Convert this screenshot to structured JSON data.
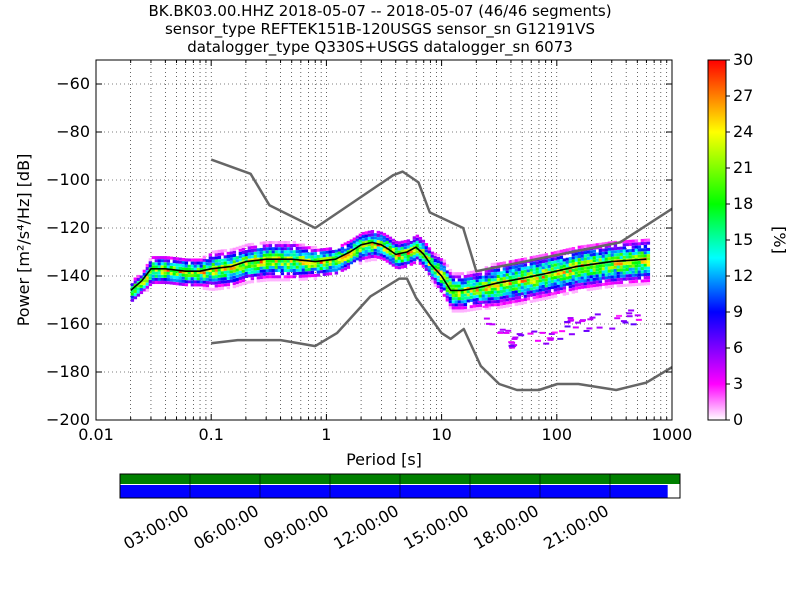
{
  "title_lines": [
    "BK.BK03.00.HHZ   2018-05-07 -- 2018-05-07  (46/46 segments)",
    "sensor_type REFTEK151B-120USGS sensor_sn G12191VS",
    "datalogger_type Q330S+USGS datalogger_sn 6073"
  ],
  "chart_data": {
    "type": "heatmap",
    "title": "BK.BK03.00.HHZ   2018-05-07 -- 2018-05-07  (46/46 segments)",
    "xlabel": "Period [s]",
    "ylabel": "Power [m²/s⁴/Hz] [dB]",
    "xscale": "log",
    "xlim": [
      0.01,
      1000
    ],
    "ylim": [
      -200,
      -50
    ],
    "xticks": [
      {
        "value": 0.01,
        "label": "0.01"
      },
      {
        "value": 0.1,
        "label": "0.1"
      },
      {
        "value": 1,
        "label": "1"
      },
      {
        "value": 10,
        "label": "10"
      },
      {
        "value": 100,
        "label": "100"
      },
      {
        "value": 1000,
        "label": "1000"
      }
    ],
    "yticks": [
      -60,
      -80,
      -100,
      -120,
      -140,
      -160,
      -180,
      -200
    ],
    "grid": true,
    "colorbar": {
      "label": "[%]",
      "min": 0,
      "max": 30,
      "ticks": [
        0,
        3,
        6,
        9,
        12,
        15,
        18,
        21,
        24,
        27,
        30
      ],
      "colors": [
        "#ffffff",
        "#ff00ff",
        "#0000ff",
        "#00ffff",
        "#00ff00",
        "#ffff00",
        "#ff0000"
      ]
    },
    "series": [
      {
        "role": "new_high_noise_model",
        "color": "#666666",
        "x": [
          0.1,
          0.22,
          0.32,
          0.8,
          3.8,
          4.6,
          6.3,
          7.9,
          15.4,
          20,
          354,
          1000
        ],
        "y": [
          -91.5,
          -97.4,
          -110.5,
          -120,
          -98,
          -96.5,
          -101,
          -113.5,
          -120,
          -138,
          -126,
          -112
        ]
      },
      {
        "role": "new_low_noise_model",
        "color": "#666666",
        "x": [
          0.1,
          0.17,
          0.4,
          0.8,
          1.24,
          2.4,
          4.3,
          5,
          6,
          10,
          12,
          15.6,
          21.9,
          31.6,
          45,
          70,
          101,
          154,
          328,
          600,
          1000
        ],
        "y": [
          -168,
          -166.7,
          -166.7,
          -169.2,
          -163.7,
          -148.6,
          -141.1,
          -141.1,
          -149,
          -163.8,
          -166.2,
          -162.1,
          -177.5,
          -185,
          -187.5,
          -187.5,
          -185,
          -185,
          -187.5,
          -184.4,
          -178
        ]
      },
      {
        "role": "mode",
        "color": "#000000",
        "x": [
          0.02,
          0.025,
          0.03,
          0.04,
          0.06,
          0.08,
          0.1,
          0.15,
          0.2,
          0.3,
          0.5,
          0.8,
          1.2,
          1.6,
          2,
          2.5,
          3,
          3.5,
          4,
          5,
          6,
          7,
          8,
          10,
          12,
          15,
          20,
          30,
          50,
          80,
          150,
          300,
          600
        ],
        "y": [
          -146,
          -142,
          -137,
          -137,
          -138,
          -138,
          -137,
          -136,
          -134,
          -133,
          -133,
          -134,
          -133,
          -130,
          -127,
          -126,
          -127,
          -129,
          -131,
          -130,
          -128,
          -131,
          -135,
          -140,
          -146,
          -146,
          -145,
          -143,
          -141,
          -139,
          -136,
          -134,
          -133
        ]
      }
    ],
    "band_width_db": [
      3,
      3,
      4,
      4,
      4,
      4,
      5,
      5,
      5,
      5,
      5,
      4,
      4,
      4,
      4,
      4,
      4,
      4,
      4,
      4,
      4,
      4,
      4,
      5,
      5,
      5,
      5,
      6,
      6,
      6,
      6,
      6,
      6
    ],
    "low_tail": {
      "x": [
        20,
        25,
        30,
        40,
        50,
        70,
        100,
        150,
        200,
        300,
        400,
        500
      ],
      "y": [
        -152,
        -158,
        -162,
        -166,
        -167,
        -165,
        -162,
        -160,
        -159,
        -158,
        -157,
        -156
      ]
    }
  },
  "time_axis": {
    "labels": [
      "03:00:00",
      "06:00:00",
      "09:00:00",
      "12:00:00",
      "15:00:00",
      "18:00:00",
      "21:00:00"
    ],
    "data_coverage_fraction": 1.0,
    "segment_coverage_fraction": 0.978,
    "data_color": "#008000",
    "segment_color": "#0000ff"
  }
}
